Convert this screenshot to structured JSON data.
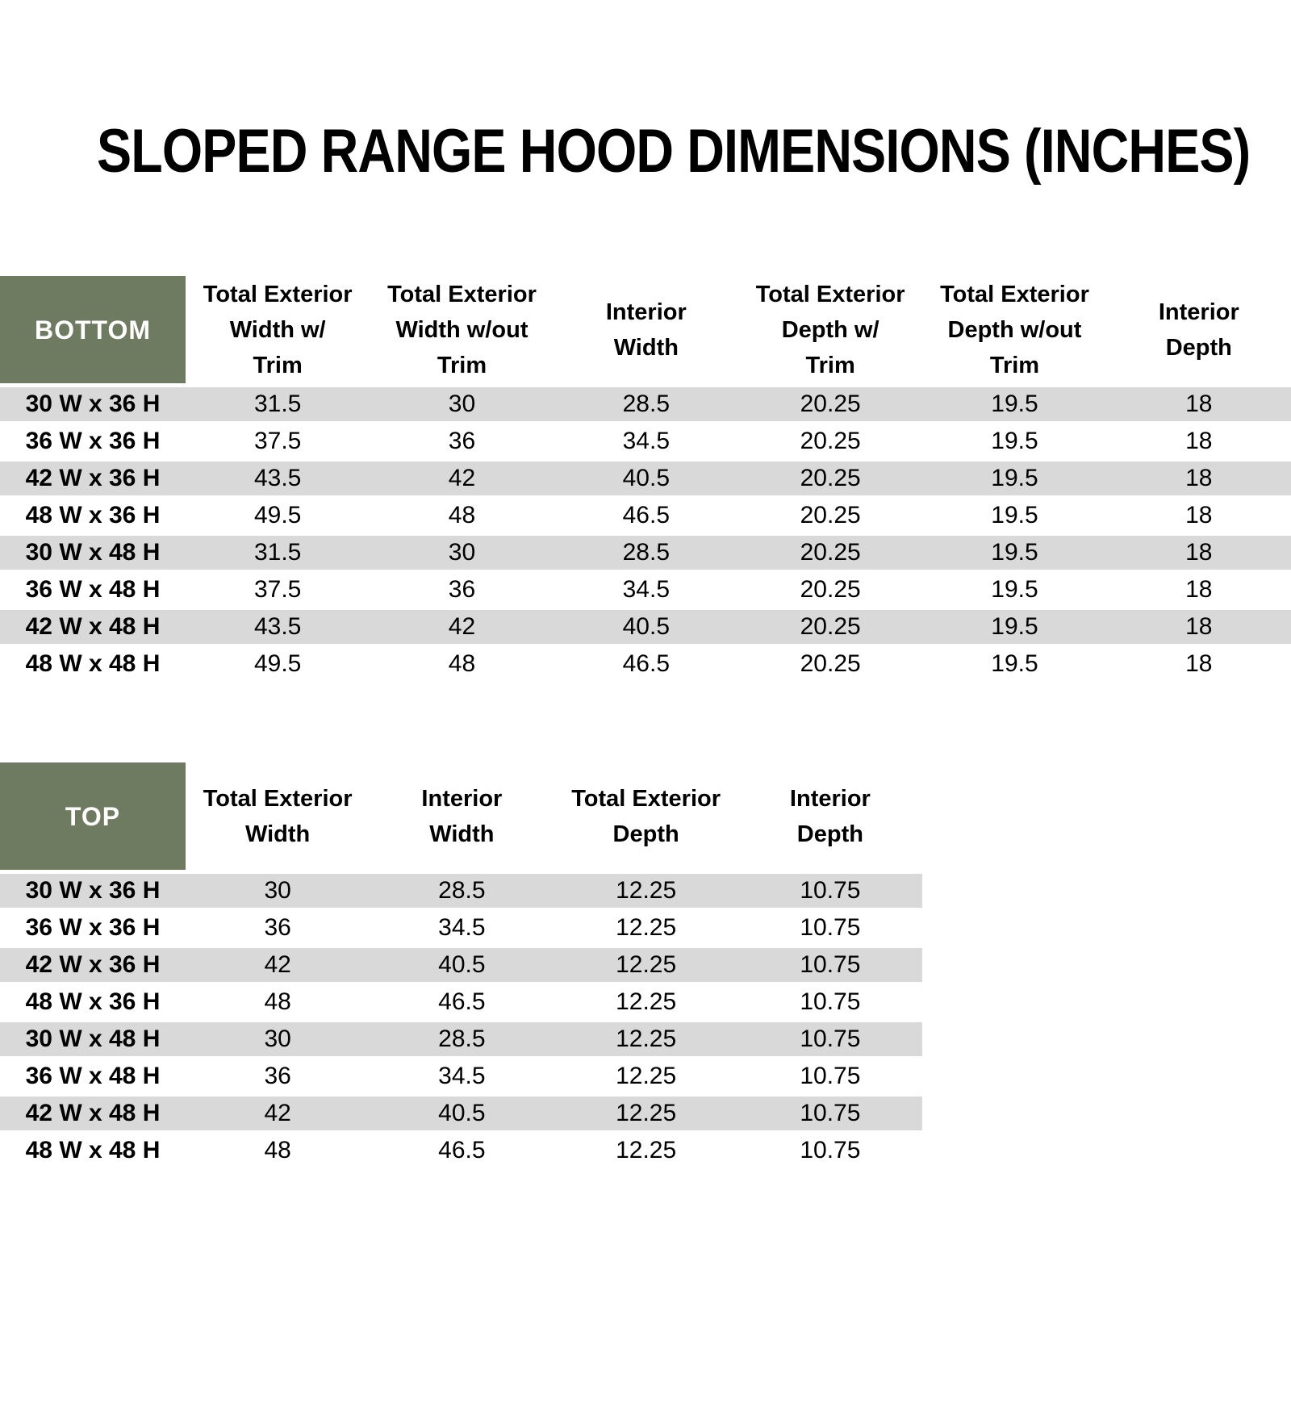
{
  "page": {
    "title": "SLOPED RANGE HOOD DIMENSIONS (INCHES)"
  },
  "colors": {
    "header_green": "#6F7B61",
    "row_gray": "#D9D9D9",
    "row_white": "#FFFFFF",
    "text_black": "#000000",
    "corner_text_white": "#FFFFFF"
  },
  "tables": [
    {
      "id": "bottom",
      "corner_label": "BOTTOM",
      "columns": [
        "Total Exterior\nWidth w/\nTrim",
        "Total Exterior\nWidth w/out\nTrim",
        "Interior\nWidth",
        "Total Exterior\nDepth w/\nTrim",
        "Total Exterior\nDepth w/out\nTrim",
        "Interior\nDepth"
      ],
      "rows": [
        {
          "label": "30 W x 36 H",
          "values": [
            "31.5",
            "30",
            "28.5",
            "20.25",
            "19.5",
            "18"
          ]
        },
        {
          "label": "36 W x 36 H",
          "values": [
            "37.5",
            "36",
            "34.5",
            "20.25",
            "19.5",
            "18"
          ]
        },
        {
          "label": "42 W x 36 H",
          "values": [
            "43.5",
            "42",
            "40.5",
            "20.25",
            "19.5",
            "18"
          ]
        },
        {
          "label": "48 W x 36 H",
          "values": [
            "49.5",
            "48",
            "46.5",
            "20.25",
            "19.5",
            "18"
          ]
        },
        {
          "label": "30 W x 48 H",
          "values": [
            "31.5",
            "30",
            "28.5",
            "20.25",
            "19.5",
            "18"
          ]
        },
        {
          "label": "36 W x 48 H",
          "values": [
            "37.5",
            "36",
            "34.5",
            "20.25",
            "19.5",
            "18"
          ]
        },
        {
          "label": "42 W x 48 H",
          "values": [
            "43.5",
            "42",
            "40.5",
            "20.25",
            "19.5",
            "18"
          ]
        },
        {
          "label": "48 W x 48 H",
          "values": [
            "49.5",
            "48",
            "46.5",
            "20.25",
            "19.5",
            "18"
          ]
        }
      ]
    },
    {
      "id": "top",
      "corner_label": "TOP",
      "columns": [
        "Total Exterior\nWidth",
        "Interior\nWidth",
        "Total Exterior\nDepth",
        "Interior\nDepth"
      ],
      "rows": [
        {
          "label": "30 W x 36 H",
          "values": [
            "30",
            "28.5",
            "12.25",
            "10.75"
          ]
        },
        {
          "label": "36 W x 36 H",
          "values": [
            "36",
            "34.5",
            "12.25",
            "10.75"
          ]
        },
        {
          "label": "42 W x 36 H",
          "values": [
            "42",
            "40.5",
            "12.25",
            "10.75"
          ]
        },
        {
          "label": "48 W x 36 H",
          "values": [
            "48",
            "46.5",
            "12.25",
            "10.75"
          ]
        },
        {
          "label": "30 W x 48 H",
          "values": [
            "30",
            "28.5",
            "12.25",
            "10.75"
          ]
        },
        {
          "label": "36 W x 48 H",
          "values": [
            "36",
            "34.5",
            "12.25",
            "10.75"
          ]
        },
        {
          "label": "42 W x 48 H",
          "values": [
            "42",
            "40.5",
            "12.25",
            "10.75"
          ]
        },
        {
          "label": "48 W x 48 H",
          "values": [
            "48",
            "46.5",
            "12.25",
            "10.75"
          ]
        }
      ]
    }
  ]
}
